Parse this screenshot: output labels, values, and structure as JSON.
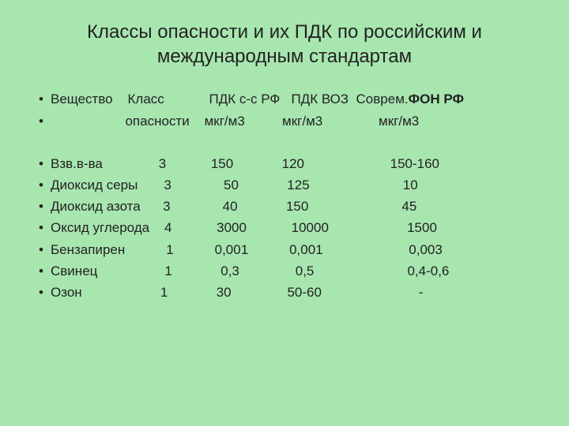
{
  "background_color": "#a8e6b0",
  "text_color": "#222222",
  "title_fontsize": 24,
  "body_fontsize": 17,
  "bullet_char": "•",
  "title": "Классы опасности и их ПДК по российским и международным стандартам",
  "header1_prefix": "Вещество    Класс            ПДК с-с РФ   ПДК ВОЗ  Соврем.",
  "header1_bold": "ФОН РФ",
  "header2": "                    опасности    мкг/м3          мкг/м3               мкг/м3",
  "rows": [
    "Взв.в-ва               3            150             120                       150-160",
    "Диоксид серы       3              50             125                         10",
    "Диоксид азота      3              40             150                         45",
    "Оксид углерода    4            3000            10000                     1500",
    "Бензапирен           1           0,001           0,001                       0,003",
    "Свинец                  1             0,3               0,5                         0,4-0,6",
    "Озон                     1             30               50-60                          -"
  ]
}
